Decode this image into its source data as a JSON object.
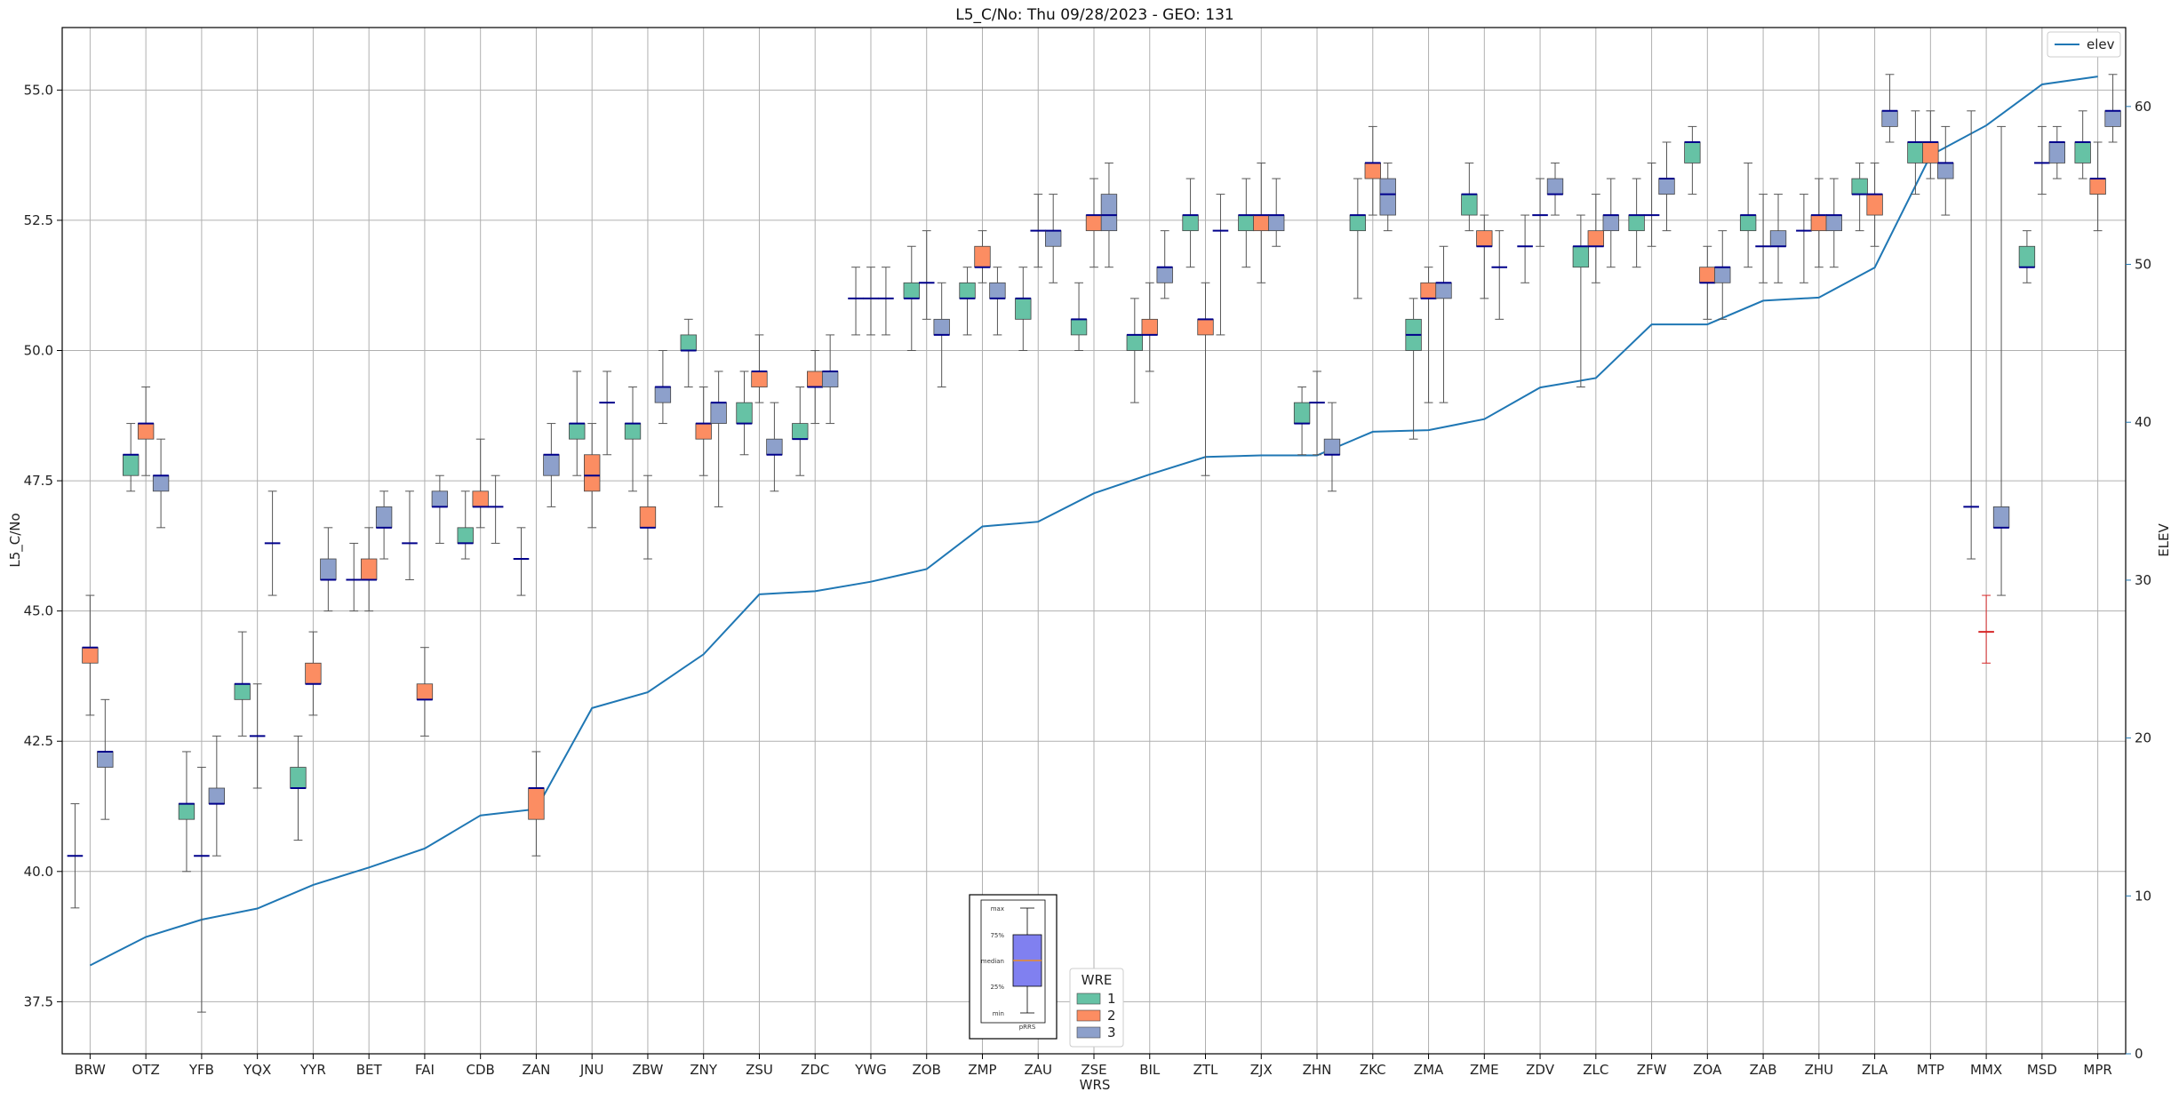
{
  "chart_data": {
    "type": "box",
    "title": "L5_C/No: Thu 09/28/2023 - GEO: 131",
    "xlabel": "WRS",
    "ylabel": "L5_C/No",
    "y2label": "ELEV",
    "ylim": [
      36.5,
      56.2
    ],
    "y2lim": [
      0,
      65
    ],
    "yticks": [
      "37.5",
      "40.0",
      "42.5",
      "45.0",
      "47.5",
      "50.0",
      "52.5",
      "55.0"
    ],
    "y2ticks": [
      "0",
      "10",
      "20",
      "30",
      "40",
      "50",
      "60"
    ],
    "grid": true,
    "categories": [
      "BRW",
      "OTZ",
      "YFB",
      "YQX",
      "YYR",
      "BET",
      "FAI",
      "CDB",
      "ZAN",
      "JNU",
      "ZBW",
      "ZNY",
      "ZSU",
      "ZDC",
      "YWG",
      "ZOB",
      "ZMP",
      "ZAU",
      "ZSE",
      "BIL",
      "ZTL",
      "ZJX",
      "ZHN",
      "ZKC",
      "ZMA",
      "ZME",
      "ZDV",
      "ZLC",
      "ZFW",
      "ZOA",
      "ZAB",
      "ZHU",
      "ZLA",
      "MTP",
      "MMX",
      "MSD",
      "MPR"
    ],
    "legend": {
      "title": "WRE",
      "entries": [
        {
          "label": "1",
          "color": "#66c2a5"
        },
        {
          "label": "2",
          "color": "#fc8d62"
        },
        {
          "label": "3",
          "color": "#8da0cb"
        }
      ]
    },
    "elev_legend": {
      "label": "elev",
      "color": "#1f77b4"
    },
    "elev": [
      5.6,
      7.4,
      8.5,
      9.2,
      10.7,
      11.8,
      13.0,
      15.1,
      15.5,
      21.9,
      22.9,
      25.3,
      29.1,
      29.3,
      29.9,
      30.7,
      33.4,
      33.7,
      35.5,
      36.7,
      37.8,
      37.9,
      37.9,
      39.4,
      39.5,
      40.2,
      42.2,
      42.8,
      46.2,
      46.2,
      47.7,
      47.9,
      49.8,
      56.9,
      58.8,
      61.4,
      61.9
    ],
    "boxes": [
      {
        "cat": 0,
        "wre": 1,
        "min": 39.3,
        "q1": 40.3,
        "median": 40.3,
        "q3": 40.3,
        "max": 41.3
      },
      {
        "cat": 0,
        "wre": 2,
        "min": 43.0,
        "q1": 44.0,
        "median": 44.3,
        "q3": 44.3,
        "max": 45.3
      },
      {
        "cat": 0,
        "wre": 3,
        "min": 41.0,
        "q1": 42.0,
        "median": 42.3,
        "q3": 42.3,
        "max": 43.3
      },
      {
        "cat": 1,
        "wre": 1,
        "min": 47.3,
        "q1": 47.6,
        "median": 48.0,
        "q3": 48.0,
        "max": 48.6
      },
      {
        "cat": 1,
        "wre": 2,
        "min": 47.6,
        "q1": 48.3,
        "median": 48.6,
        "q3": 48.6,
        "max": 49.3
      },
      {
        "cat": 1,
        "wre": 3,
        "min": 46.6,
        "q1": 47.3,
        "median": 47.6,
        "q3": 47.6,
        "max": 48.3
      },
      {
        "cat": 2,
        "wre": 1,
        "min": 40.0,
        "q1": 41.0,
        "median": 41.3,
        "q3": 41.3,
        "max": 42.3
      },
      {
        "cat": 2,
        "wre": 2,
        "min": 37.3,
        "q1": 40.3,
        "median": 40.3,
        "q3": 40.3,
        "max": 42.0
      },
      {
        "cat": 2,
        "wre": 3,
        "min": 40.3,
        "q1": 41.3,
        "median": 41.3,
        "q3": 41.6,
        "max": 42.6
      },
      {
        "cat": 3,
        "wre": 1,
        "min": 42.6,
        "q1": 43.3,
        "median": 43.6,
        "q3": 43.6,
        "max": 44.6
      },
      {
        "cat": 3,
        "wre": 2,
        "min": 41.6,
        "q1": 42.6,
        "median": 42.6,
        "q3": 42.6,
        "max": 43.6
      },
      {
        "cat": 3,
        "wre": 3,
        "min": 45.3,
        "q1": 46.3,
        "median": 46.3,
        "q3": 46.3,
        "max": 47.3
      },
      {
        "cat": 4,
        "wre": 1,
        "min": 40.6,
        "q1": 41.6,
        "median": 41.6,
        "q3": 42.0,
        "max": 42.6
      },
      {
        "cat": 4,
        "wre": 2,
        "min": 43.0,
        "q1": 43.6,
        "median": 43.6,
        "q3": 44.0,
        "max": 44.6
      },
      {
        "cat": 4,
        "wre": 3,
        "min": 45.0,
        "q1": 45.6,
        "median": 45.6,
        "q3": 46.0,
        "max": 46.6
      },
      {
        "cat": 5,
        "wre": 1,
        "min": 45.0,
        "q1": 45.6,
        "median": 45.6,
        "q3": 45.6,
        "max": 46.3
      },
      {
        "cat": 5,
        "wre": 2,
        "min": 45.0,
        "q1": 45.6,
        "median": 45.6,
        "q3": 46.0,
        "max": 46.6
      },
      {
        "cat": 5,
        "wre": 3,
        "min": 46.0,
        "q1": 46.6,
        "median": 46.6,
        "q3": 47.0,
        "max": 47.3
      },
      {
        "cat": 6,
        "wre": 1,
        "min": 45.6,
        "q1": 46.3,
        "median": 46.3,
        "q3": 46.3,
        "max": 47.3
      },
      {
        "cat": 6,
        "wre": 2,
        "min": 42.6,
        "q1": 43.3,
        "median": 43.3,
        "q3": 43.6,
        "max": 44.3
      },
      {
        "cat": 6,
        "wre": 3,
        "min": 46.3,
        "q1": 47.0,
        "median": 47.0,
        "q3": 47.3,
        "max": 47.6
      },
      {
        "cat": 7,
        "wre": 1,
        "min": 46.0,
        "q1": 46.3,
        "median": 46.3,
        "q3": 46.6,
        "max": 47.3
      },
      {
        "cat": 7,
        "wre": 2,
        "min": 46.6,
        "q1": 47.0,
        "median": 47.0,
        "q3": 47.3,
        "max": 48.3
      },
      {
        "cat": 7,
        "wre": 3,
        "min": 46.3,
        "q1": 47.0,
        "median": 47.0,
        "q3": 47.0,
        "max": 47.6
      },
      {
        "cat": 8,
        "wre": 1,
        "min": 45.3,
        "q1": 46.0,
        "median": 46.0,
        "q3": 46.0,
        "max": 46.6
      },
      {
        "cat": 8,
        "wre": 2,
        "min": 40.3,
        "q1": 41.0,
        "median": 41.6,
        "q3": 41.6,
        "max": 42.3
      },
      {
        "cat": 8,
        "wre": 3,
        "min": 47.0,
        "q1": 47.6,
        "median": 48.0,
        "q3": 48.0,
        "max": 48.6
      },
      {
        "cat": 9,
        "wre": 1,
        "min": 47.6,
        "q1": 48.3,
        "median": 48.6,
        "q3": 48.6,
        "max": 49.6
      },
      {
        "cat": 9,
        "wre": 2,
        "min": 46.6,
        "q1": 47.3,
        "median": 47.6,
        "q3": 48.0,
        "max": 48.6
      },
      {
        "cat": 9,
        "wre": 3,
        "min": 48.0,
        "q1": 49.0,
        "median": 49.0,
        "q3": 49.0,
        "max": 49.6
      },
      {
        "cat": 10,
        "wre": 1,
        "min": 47.3,
        "q1": 48.3,
        "median": 48.6,
        "q3": 48.6,
        "max": 49.3
      },
      {
        "cat": 10,
        "wre": 2,
        "min": 46.0,
        "q1": 46.6,
        "median": 46.6,
        "q3": 47.0,
        "max": 47.6
      },
      {
        "cat": 10,
        "wre": 3,
        "min": 48.6,
        "q1": 49.0,
        "median": 49.3,
        "q3": 49.3,
        "max": 50.0
      },
      {
        "cat": 11,
        "wre": 1,
        "min": 49.3,
        "q1": 50.0,
        "median": 50.0,
        "q3": 50.3,
        "max": 50.6
      },
      {
        "cat": 11,
        "wre": 2,
        "min": 47.6,
        "q1": 48.3,
        "median": 48.6,
        "q3": 48.6,
        "max": 49.3
      },
      {
        "cat": 11,
        "wre": 3,
        "min": 47.0,
        "q1": 48.6,
        "median": 49.0,
        "q3": 49.0,
        "max": 49.6
      },
      {
        "cat": 12,
        "wre": 1,
        "min": 48.0,
        "q1": 48.6,
        "median": 48.6,
        "q3": 49.0,
        "max": 49.6
      },
      {
        "cat": 12,
        "wre": 2,
        "min": 49.0,
        "q1": 49.3,
        "median": 49.6,
        "q3": 49.6,
        "max": 50.3
      },
      {
        "cat": 12,
        "wre": 3,
        "min": 47.3,
        "q1": 48.0,
        "median": 48.0,
        "q3": 48.3,
        "max": 49.0
      },
      {
        "cat": 13,
        "wre": 1,
        "min": 47.6,
        "q1": 48.3,
        "median": 48.3,
        "q3": 48.6,
        "max": 49.3
      },
      {
        "cat": 13,
        "wre": 2,
        "min": 48.6,
        "q1": 49.3,
        "median": 49.3,
        "q3": 49.6,
        "max": 50.0
      },
      {
        "cat": 13,
        "wre": 3,
        "min": 48.6,
        "q1": 49.3,
        "median": 49.6,
        "q3": 49.6,
        "max": 50.3
      },
      {
        "cat": 14,
        "wre": 1,
        "min": 50.3,
        "q1": 51.0,
        "median": 51.0,
        "q3": 51.0,
        "max": 51.6
      },
      {
        "cat": 14,
        "wre": 2,
        "min": 50.3,
        "q1": 51.0,
        "median": 51.0,
        "q3": 51.0,
        "max": 51.6
      },
      {
        "cat": 14,
        "wre": 3,
        "min": 50.3,
        "q1": 51.0,
        "median": 51.0,
        "q3": 51.0,
        "max": 51.6
      },
      {
        "cat": 15,
        "wre": 1,
        "min": 50.0,
        "q1": 51.0,
        "median": 51.0,
        "q3": 51.3,
        "max": 52.0
      },
      {
        "cat": 15,
        "wre": 2,
        "min": 50.6,
        "q1": 51.3,
        "median": 51.3,
        "q3": 51.3,
        "max": 52.3
      },
      {
        "cat": 15,
        "wre": 3,
        "min": 49.3,
        "q1": 50.3,
        "median": 50.3,
        "q3": 50.6,
        "max": 51.3
      },
      {
        "cat": 16,
        "wre": 1,
        "min": 50.3,
        "q1": 51.0,
        "median": 51.0,
        "q3": 51.3,
        "max": 51.6
      },
      {
        "cat": 16,
        "wre": 2,
        "min": 51.3,
        "q1": 51.6,
        "median": 51.6,
        "q3": 52.0,
        "max": 52.3
      },
      {
        "cat": 16,
        "wre": 3,
        "min": 50.3,
        "q1": 51.0,
        "median": 51.0,
        "q3": 51.3,
        "max": 51.6
      },
      {
        "cat": 17,
        "wre": 1,
        "min": 50.0,
        "q1": 50.6,
        "median": 51.0,
        "q3": 51.0,
        "max": 51.6
      },
      {
        "cat": 17,
        "wre": 2,
        "min": 51.6,
        "q1": 52.3,
        "median": 52.3,
        "q3": 52.3,
        "max": 53.0
      },
      {
        "cat": 17,
        "wre": 3,
        "min": 51.3,
        "q1": 52.0,
        "median": 52.3,
        "q3": 52.3,
        "max": 53.0
      },
      {
        "cat": 18,
        "wre": 1,
        "min": 50.0,
        "q1": 50.3,
        "median": 50.6,
        "q3": 50.6,
        "max": 51.3
      },
      {
        "cat": 18,
        "wre": 2,
        "min": 51.6,
        "q1": 52.3,
        "median": 52.6,
        "q3": 52.6,
        "max": 53.3
      },
      {
        "cat": 18,
        "wre": 3,
        "min": 51.6,
        "q1": 52.3,
        "median": 52.6,
        "q3": 53.0,
        "max": 53.6
      },
      {
        "cat": 19,
        "wre": 1,
        "min": 49.0,
        "q1": 50.0,
        "median": 50.3,
        "q3": 50.3,
        "max": 51.0
      },
      {
        "cat": 19,
        "wre": 2,
        "min": 49.6,
        "q1": 50.3,
        "median": 50.3,
        "q3": 50.6,
        "max": 51.3
      },
      {
        "cat": 19,
        "wre": 3,
        "min": 51.0,
        "q1": 51.3,
        "median": 51.6,
        "q3": 51.6,
        "max": 52.3
      },
      {
        "cat": 20,
        "wre": 1,
        "min": 51.6,
        "q1": 52.3,
        "median": 52.6,
        "q3": 52.6,
        "max": 53.3
      },
      {
        "cat": 20,
        "wre": 2,
        "min": 47.6,
        "q1": 50.3,
        "median": 50.6,
        "q3": 50.6,
        "max": 51.3
      },
      {
        "cat": 20,
        "wre": 3,
        "min": 50.3,
        "q1": 52.3,
        "median": 52.3,
        "q3": 52.3,
        "max": 53.0
      },
      {
        "cat": 21,
        "wre": 1,
        "min": 51.6,
        "q1": 52.3,
        "median": 52.6,
        "q3": 52.6,
        "max": 53.3
      },
      {
        "cat": 21,
        "wre": 2,
        "min": 51.3,
        "q1": 52.3,
        "median": 52.6,
        "q3": 52.6,
        "max": 53.6
      },
      {
        "cat": 21,
        "wre": 3,
        "min": 52.0,
        "q1": 52.3,
        "median": 52.6,
        "q3": 52.6,
        "max": 53.3
      },
      {
        "cat": 22,
        "wre": 1,
        "min": 48.0,
        "q1": 48.6,
        "median": 48.6,
        "q3": 49.0,
        "max": 49.3
      },
      {
        "cat": 22,
        "wre": 2,
        "min": 48.0,
        "q1": 49.0,
        "median": 49.0,
        "q3": 49.0,
        "max": 49.6
      },
      {
        "cat": 22,
        "wre": 3,
        "min": 47.3,
        "q1": 48.0,
        "median": 48.0,
        "q3": 48.3,
        "max": 49.0
      },
      {
        "cat": 23,
        "wre": 1,
        "min": 51.0,
        "q1": 52.3,
        "median": 52.6,
        "q3": 52.6,
        "max": 53.3
      },
      {
        "cat": 23,
        "wre": 2,
        "min": 52.6,
        "q1": 53.3,
        "median": 53.6,
        "q3": 53.6,
        "max": 54.3
      },
      {
        "cat": 23,
        "wre": 3,
        "min": 52.3,
        "q1": 52.6,
        "median": 53.0,
        "q3": 53.3,
        "max": 53.6
      },
      {
        "cat": 24,
        "wre": 1,
        "min": 48.3,
        "q1": 50.0,
        "median": 50.3,
        "q3": 50.6,
        "max": 51.0
      },
      {
        "cat": 24,
        "wre": 2,
        "min": 49.0,
        "q1": 51.0,
        "median": 51.0,
        "q3": 51.3,
        "max": 51.6
      },
      {
        "cat": 24,
        "wre": 3,
        "min": 49.0,
        "q1": 51.0,
        "median": 51.3,
        "q3": 51.3,
        "max": 52.0
      },
      {
        "cat": 25,
        "wre": 1,
        "min": 52.3,
        "q1": 52.6,
        "median": 53.0,
        "q3": 53.0,
        "max": 53.6
      },
      {
        "cat": 25,
        "wre": 2,
        "min": 51.0,
        "q1": 52.0,
        "median": 52.0,
        "q3": 52.3,
        "max": 52.6
      },
      {
        "cat": 25,
        "wre": 3,
        "min": 50.6,
        "q1": 51.6,
        "median": 51.6,
        "q3": 51.6,
        "max": 52.3
      },
      {
        "cat": 26,
        "wre": 1,
        "min": 51.3,
        "q1": 52.0,
        "median": 52.0,
        "q3": 52.0,
        "max": 52.6
      },
      {
        "cat": 26,
        "wre": 2,
        "min": 52.0,
        "q1": 52.6,
        "median": 52.6,
        "q3": 52.6,
        "max": 53.3
      },
      {
        "cat": 26,
        "wre": 3,
        "min": 52.6,
        "q1": 53.0,
        "median": 53.0,
        "q3": 53.3,
        "max": 53.6
      },
      {
        "cat": 27,
        "wre": 1,
        "min": 49.3,
        "q1": 51.6,
        "median": 52.0,
        "q3": 52.0,
        "max": 52.6
      },
      {
        "cat": 27,
        "wre": 2,
        "min": 51.3,
        "q1": 52.0,
        "median": 52.0,
        "q3": 52.3,
        "max": 53.0
      },
      {
        "cat": 27,
        "wre": 3,
        "min": 51.6,
        "q1": 52.3,
        "median": 52.6,
        "q3": 52.6,
        "max": 53.3
      },
      {
        "cat": 28,
        "wre": 1,
        "min": 51.6,
        "q1": 52.3,
        "median": 52.6,
        "q3": 52.6,
        "max": 53.3
      },
      {
        "cat": 28,
        "wre": 2,
        "min": 52.0,
        "q1": 52.6,
        "median": 52.6,
        "q3": 52.6,
        "max": 53.6
      },
      {
        "cat": 28,
        "wre": 3,
        "min": 52.3,
        "q1": 53.0,
        "median": 53.3,
        "q3": 53.3,
        "max": 54.0
      },
      {
        "cat": 29,
        "wre": 1,
        "min": 53.0,
        "q1": 53.6,
        "median": 54.0,
        "q3": 54.0,
        "max": 54.3
      },
      {
        "cat": 29,
        "wre": 2,
        "min": 50.6,
        "q1": 51.3,
        "median": 51.3,
        "q3": 51.6,
        "max": 52.0
      },
      {
        "cat": 29,
        "wre": 3,
        "min": 50.6,
        "q1": 51.3,
        "median": 51.6,
        "q3": 51.6,
        "max": 52.3
      },
      {
        "cat": 30,
        "wre": 1,
        "min": 51.6,
        "q1": 52.3,
        "median": 52.6,
        "q3": 52.6,
        "max": 53.6
      },
      {
        "cat": 30,
        "wre": 2,
        "min": 51.3,
        "q1": 52.0,
        "median": 52.0,
        "q3": 52.0,
        "max": 53.0
      },
      {
        "cat": 30,
        "wre": 3,
        "min": 51.3,
        "q1": 52.0,
        "median": 52.0,
        "q3": 52.3,
        "max": 53.0
      },
      {
        "cat": 31,
        "wre": 1,
        "min": 51.3,
        "q1": 52.3,
        "median": 52.3,
        "q3": 52.3,
        "max": 53.0
      },
      {
        "cat": 31,
        "wre": 2,
        "min": 51.6,
        "q1": 52.3,
        "median": 52.6,
        "q3": 52.6,
        "max": 53.3
      },
      {
        "cat": 31,
        "wre": 3,
        "min": 51.6,
        "q1": 52.3,
        "median": 52.6,
        "q3": 52.6,
        "max": 53.3
      },
      {
        "cat": 32,
        "wre": 1,
        "min": 52.3,
        "q1": 53.0,
        "median": 53.0,
        "q3": 53.3,
        "max": 53.6
      },
      {
        "cat": 32,
        "wre": 2,
        "min": 52.0,
        "q1": 52.6,
        "median": 53.0,
        "q3": 53.0,
        "max": 53.6
      },
      {
        "cat": 32,
        "wre": 3,
        "min": 54.0,
        "q1": 54.3,
        "median": 54.6,
        "q3": 54.6,
        "max": 55.3
      },
      {
        "cat": 33,
        "wre": 1,
        "min": 53.0,
        "q1": 53.6,
        "median": 54.0,
        "q3": 54.0,
        "max": 54.6
      },
      {
        "cat": 33,
        "wre": 2,
        "min": 53.3,
        "q1": 53.6,
        "median": 54.0,
        "q3": 54.0,
        "max": 54.6
      },
      {
        "cat": 33,
        "wre": 3,
        "min": 52.6,
        "q1": 53.3,
        "median": 53.6,
        "q3": 53.6,
        "max": 54.3
      },
      {
        "cat": 34,
        "wre": 1,
        "min": 46.0,
        "q1": 47.0,
        "median": 47.0,
        "q3": 47.0,
        "max": 54.6
      },
      {
        "cat": 34,
        "wre": 2,
        "min": 44.0,
        "q1": 44.6,
        "median": 44.6,
        "q3": 44.6,
        "max": 45.3,
        "color": "#d62728"
      },
      {
        "cat": 34,
        "wre": 3,
        "min": 45.3,
        "q1": 46.6,
        "median": 46.6,
        "q3": 47.0,
        "max": 54.3
      },
      {
        "cat": 35,
        "wre": 1,
        "min": 51.3,
        "q1": 51.6,
        "median": 51.6,
        "q3": 52.0,
        "max": 52.3
      },
      {
        "cat": 35,
        "wre": 2,
        "min": 53.0,
        "q1": 53.6,
        "median": 53.6,
        "q3": 53.6,
        "max": 54.3
      },
      {
        "cat": 35,
        "wre": 3,
        "min": 53.3,
        "q1": 53.6,
        "median": 54.0,
        "q3": 54.0,
        "max": 54.3
      },
      {
        "cat": 36,
        "wre": 1,
        "min": 53.3,
        "q1": 53.6,
        "median": 54.0,
        "q3": 54.0,
        "max": 54.6
      },
      {
        "cat": 36,
        "wre": 2,
        "min": 52.3,
        "q1": 53.0,
        "median": 53.3,
        "q3": 53.3,
        "max": 54.0
      },
      {
        "cat": 36,
        "wre": 3,
        "min": 54.0,
        "q1": 54.3,
        "median": 54.6,
        "q3": 54.6,
        "max": 55.3
      }
    ],
    "inset": {
      "labels": [
        "max",
        "75%",
        "median",
        "25%",
        "min"
      ],
      "xlabel": "pRRS"
    }
  }
}
